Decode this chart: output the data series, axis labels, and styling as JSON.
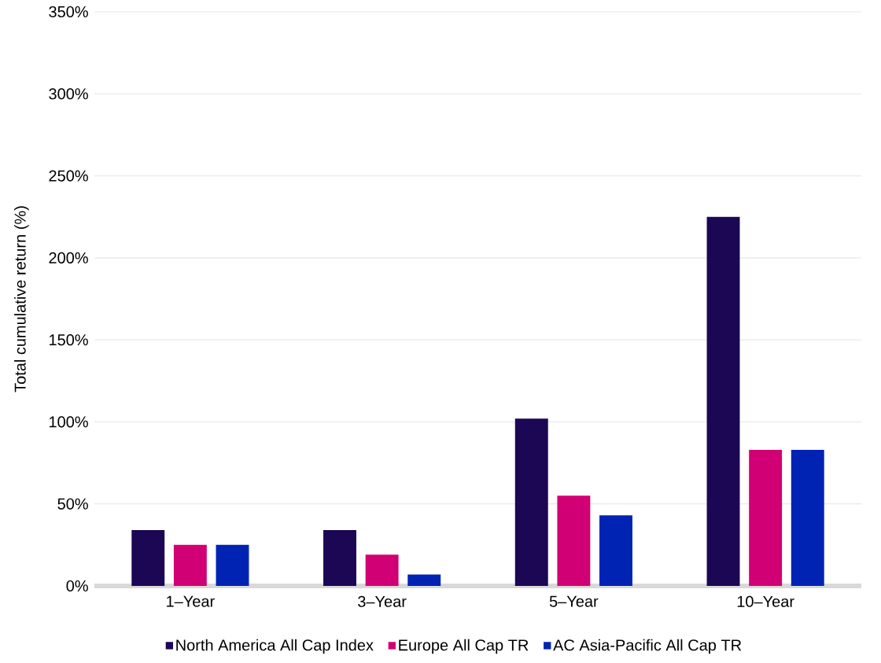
{
  "chart_data": {
    "type": "bar",
    "ylabel": "Total cumulative return (%)",
    "categories": [
      "1–Year",
      "3–Year",
      "5–Year",
      "10–Year"
    ],
    "series": [
      {
        "name": "North America All Cap Index",
        "color": "#1b0754",
        "values": [
          34,
          34,
          102,
          225
        ]
      },
      {
        "name": "Europe All Cap TR",
        "color": "#d10074",
        "values": [
          25,
          19,
          55,
          83
        ]
      },
      {
        "name": "AC Asia-Pacific All Cap TR",
        "color": "#0023b3",
        "values": [
          25,
          7,
          43,
          83
        ]
      }
    ],
    "ylim": [
      0,
      350
    ],
    "yticks": [
      {
        "value": 0,
        "label": "0%"
      },
      {
        "value": 50,
        "label": "50%"
      },
      {
        "value": 100,
        "label": "100%"
      },
      {
        "value": 150,
        "label": "150%"
      },
      {
        "value": 200,
        "label": "200%"
      },
      {
        "value": 250,
        "label": "250%"
      },
      {
        "value": 300,
        "label": "300%"
      },
      {
        "value": 350,
        "label": "350%"
      }
    ],
    "grid": "y",
    "legend": "bottom"
  }
}
